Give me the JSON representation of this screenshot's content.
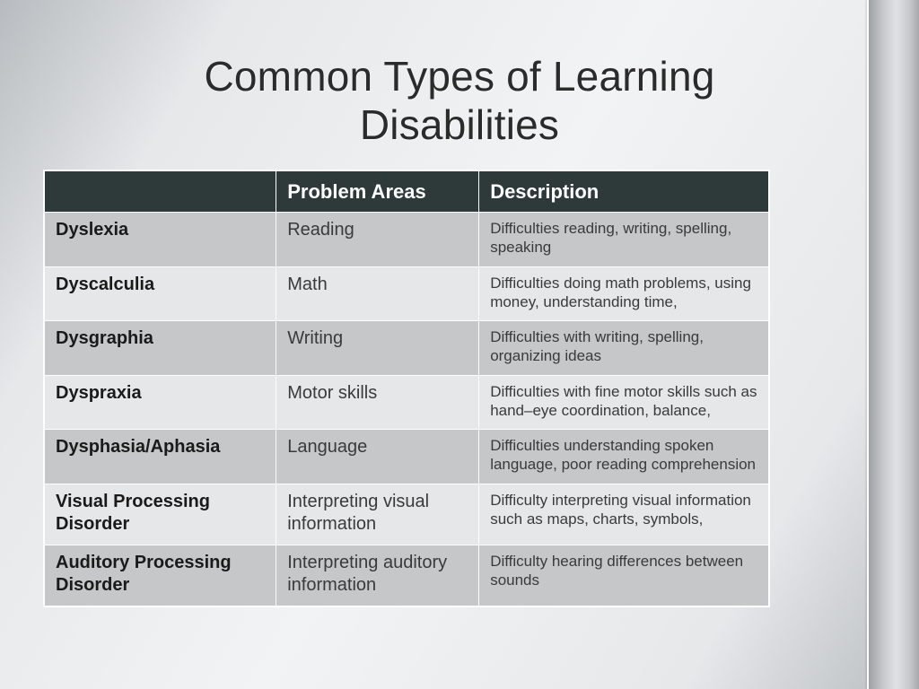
{
  "title": "Common Types of Learning Disabilities",
  "colors": {
    "header_bg": "#2e3a39",
    "header_fg": "#ffffff",
    "row_alt_a": "#c6c7c8",
    "row_alt_b": "#e6e7e8",
    "cell_border": "#ffffff",
    "title_color": "#2b2b2b"
  },
  "columns": [
    "",
    "Problem Areas",
    "Description"
  ],
  "column_widths_pct": [
    32,
    28,
    40
  ],
  "fontsizes": {
    "title": 46,
    "header": 22,
    "name": 20,
    "area": 20,
    "desc": 17
  },
  "rows": [
    {
      "name": "Dyslexia",
      "area": "Reading",
      "desc": "Difficulties reading, writing, spelling, speaking"
    },
    {
      "name": "Dyscalculia",
      "area": "Math",
      "desc": "Difficulties doing math problems, using money, understanding time,"
    },
    {
      "name": "Dysgraphia",
      "area": "Writing",
      "desc": "Difficulties with writing, spelling, organizing ideas"
    },
    {
      "name": "Dyspraxia",
      "area": "Motor skills",
      "desc": "Difficulties with fine motor skills such as hand–eye coordination, balance,"
    },
    {
      "name": "Dysphasia/Aphasia",
      "area": "Language",
      "desc": "Difficulties understanding spoken language, poor reading comprehension"
    },
    {
      "name": "Visual Processing Disorder",
      "area": "Interpreting visual information",
      "desc": "Difficulty interpreting visual information such as maps, charts, symbols,"
    },
    {
      "name": "Auditory Processing Disorder",
      "area": "Interpreting auditory information",
      "desc": "Difficulty hearing differences between sounds"
    }
  ]
}
